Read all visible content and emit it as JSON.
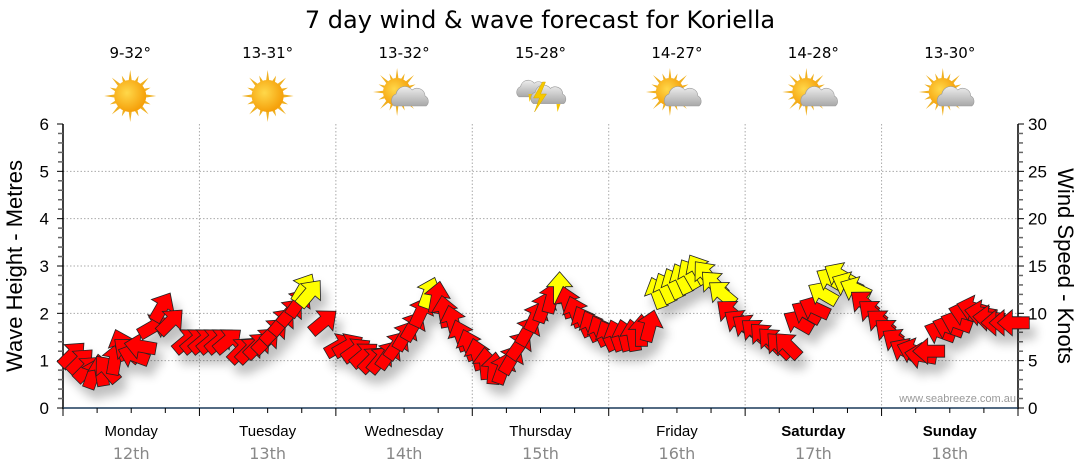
{
  "chart_data": {
    "type": "scatter",
    "title": "7 day wind & wave forecast for Koriella",
    "ylabel_left": "Wave Height - Metres",
    "ylabel_right": "Wind Speed - Knots",
    "ylim_left": [
      0,
      6
    ],
    "ylim_right": [
      0,
      30
    ],
    "yticks_left": [
      "0",
      "1",
      "2",
      "3",
      "4",
      "5",
      "6"
    ],
    "yticks_right": [
      "0",
      "5",
      "10",
      "15",
      "20",
      "25",
      "30"
    ],
    "grid": true,
    "watermark": "www.seabreeze.com.au",
    "colors": {
      "light_wind": "#ff0000",
      "strong_wind": "#ffff00",
      "axis": "#1a3a5a",
      "grid": "#aaaaaa"
    },
    "days": [
      {
        "name": "Monday",
        "date": "12th",
        "temp": "9-32°",
        "icon": "sunny-icon",
        "bold": false
      },
      {
        "name": "Tuesday",
        "date": "13th",
        "temp": "13-31°",
        "icon": "sunny-icon",
        "bold": false
      },
      {
        "name": "Wednesday",
        "date": "14th",
        "temp": "13-32°",
        "icon": "partly-cloudy-icon",
        "bold": false
      },
      {
        "name": "Thursday",
        "date": "15th",
        "temp": "15-28°",
        "icon": "thunderstorm-icon",
        "bold": false
      },
      {
        "name": "Friday",
        "date": "16th",
        "temp": "14-27°",
        "icon": "partly-cloudy-icon",
        "bold": false
      },
      {
        "name": "Saturday",
        "date": "17th",
        "temp": "14-28°",
        "icon": "partly-cloudy-icon",
        "bold": true
      },
      {
        "name": "Sunday",
        "date": "18th",
        "temp": "13-30°",
        "icon": "partly-cloudy-icon",
        "bold": true
      }
    ],
    "wind_x_unit": "days from Monday 00:00",
    "wind_series": [
      {
        "t": 0.06,
        "knots": 5.5,
        "dir": 45
      },
      {
        "t": 0.12,
        "knots": 4.8,
        "dir": 45
      },
      {
        "t": 0.17,
        "knots": 4.0,
        "dir": 45
      },
      {
        "t": 0.22,
        "knots": 3.5,
        "dir": 20
      },
      {
        "t": 0.28,
        "knots": 3.8,
        "dir": -10
      },
      {
        "t": 0.33,
        "knots": 4.0,
        "dir": -40
      },
      {
        "t": 0.38,
        "knots": 5.0,
        "dir": 10
      },
      {
        "t": 0.43,
        "knots": 6.5,
        "dir": -20
      },
      {
        "t": 0.48,
        "knots": 6.0,
        "dir": -50
      },
      {
        "t": 0.53,
        "knots": 5.5,
        "dir": -70
      },
      {
        "t": 0.58,
        "knots": 6.5,
        "dir": -80
      },
      {
        "t": 0.65,
        "knots": 8.5,
        "dir": 60
      },
      {
        "t": 0.72,
        "knots": 10.5,
        "dir": 30
      },
      {
        "t": 0.78,
        "knots": 9.0,
        "dir": 45
      },
      {
        "t": 0.9,
        "knots": 7.0,
        "dir": 50
      },
      {
        "t": 0.96,
        "knots": 7.0,
        "dir": 50
      },
      {
        "t": 1.02,
        "knots": 7.0,
        "dir": 50
      },
      {
        "t": 1.08,
        "knots": 7.0,
        "dir": 50
      },
      {
        "t": 1.14,
        "knots": 7.0,
        "dir": 50
      },
      {
        "t": 1.2,
        "knots": 7.0,
        "dir": 50
      },
      {
        "t": 1.3,
        "knots": 6.0,
        "dir": 45
      },
      {
        "t": 1.36,
        "knots": 6.0,
        "dir": 45
      },
      {
        "t": 1.42,
        "knots": 6.5,
        "dir": 45
      },
      {
        "t": 1.48,
        "knots": 7.0,
        "dir": 45
      },
      {
        "t": 1.54,
        "knots": 8.0,
        "dir": 45
      },
      {
        "t": 1.6,
        "knots": 9.0,
        "dir": 40
      },
      {
        "t": 1.66,
        "knots": 10.0,
        "dir": 40
      },
      {
        "t": 1.72,
        "knots": 11.0,
        "dir": 35
      },
      {
        "t": 1.76,
        "knots": 12.5,
        "dir": 30
      },
      {
        "t": 1.8,
        "knots": 12.0,
        "dir": 40
      },
      {
        "t": 1.9,
        "knots": 9.0,
        "dir": 50
      },
      {
        "t": 2.02,
        "knots": 6.5,
        "dir": 60
      },
      {
        "t": 2.08,
        "knots": 6.5,
        "dir": 60
      },
      {
        "t": 2.14,
        "knots": 6.0,
        "dir": 55
      },
      {
        "t": 2.2,
        "knots": 5.5,
        "dir": 50
      },
      {
        "t": 2.26,
        "knots": 5.0,
        "dir": 45
      },
      {
        "t": 2.32,
        "knots": 5.0,
        "dir": 40
      },
      {
        "t": 2.38,
        "knots": 5.5,
        "dir": 35
      },
      {
        "t": 2.44,
        "knots": 6.5,
        "dir": 35
      },
      {
        "t": 2.5,
        "knots": 7.5,
        "dir": 30
      },
      {
        "t": 2.56,
        "knots": 8.5,
        "dir": 30
      },
      {
        "t": 2.62,
        "knots": 10.0,
        "dir": 25
      },
      {
        "t": 2.68,
        "knots": 12.0,
        "dir": 20
      },
      {
        "t": 2.74,
        "knots": 11.5,
        "dir": 10
      },
      {
        "t": 2.8,
        "knots": 10.0,
        "dir": -10
      },
      {
        "t": 2.86,
        "knots": 9.0,
        "dir": -15
      },
      {
        "t": 2.92,
        "knots": 7.5,
        "dir": -20
      },
      {
        "t": 2.98,
        "knots": 6.5,
        "dir": -20
      },
      {
        "t": 3.04,
        "knots": 5.5,
        "dir": -15
      },
      {
        "t": 3.1,
        "knots": 4.5,
        "dir": -5
      },
      {
        "t": 3.16,
        "knots": 4.0,
        "dir": 5
      },
      {
        "t": 3.22,
        "knots": 4.0,
        "dir": 20
      },
      {
        "t": 3.28,
        "knots": 5.0,
        "dir": 30
      },
      {
        "t": 3.34,
        "knots": 6.5,
        "dir": 35
      },
      {
        "t": 3.4,
        "knots": 8.0,
        "dir": 30
      },
      {
        "t": 3.46,
        "knots": 9.5,
        "dir": 25
      },
      {
        "t": 3.52,
        "knots": 10.5,
        "dir": 20
      },
      {
        "t": 3.58,
        "knots": 11.5,
        "dir": 15
      },
      {
        "t": 3.64,
        "knots": 12.5,
        "dir": 0
      },
      {
        "t": 3.7,
        "knots": 11.0,
        "dir": -15
      },
      {
        "t": 3.76,
        "knots": 10.0,
        "dir": -20
      },
      {
        "t": 3.82,
        "knots": 9.0,
        "dir": -25
      },
      {
        "t": 3.88,
        "knots": 8.5,
        "dir": -25
      },
      {
        "t": 3.94,
        "knots": 8.0,
        "dir": -25
      },
      {
        "t": 4.0,
        "knots": 7.5,
        "dir": -25
      },
      {
        "t": 4.06,
        "knots": 7.5,
        "dir": -20
      },
      {
        "t": 4.12,
        "knots": 7.5,
        "dir": -15
      },
      {
        "t": 4.18,
        "knots": 7.5,
        "dir": -10
      },
      {
        "t": 4.24,
        "knots": 8.0,
        "dir": 0
      },
      {
        "t": 4.3,
        "knots": 8.5,
        "dir": 15
      },
      {
        "t": 4.36,
        "knots": 12.0,
        "dir": -20
      },
      {
        "t": 4.42,
        "knots": 12.5,
        "dir": -25
      },
      {
        "t": 4.48,
        "knots": 13.0,
        "dir": -25
      },
      {
        "t": 4.54,
        "knots": 13.5,
        "dir": -25
      },
      {
        "t": 4.6,
        "knots": 14.0,
        "dir": -30
      },
      {
        "t": 4.66,
        "knots": 14.5,
        "dir": -30
      },
      {
        "t": 4.72,
        "knots": 14.0,
        "dir": -40
      },
      {
        "t": 4.78,
        "knots": 13.0,
        "dir": -45
      },
      {
        "t": 4.84,
        "knots": 12.0,
        "dir": -50
      },
      {
        "t": 4.9,
        "knots": 10.0,
        "dir": -50
      },
      {
        "t": 4.96,
        "knots": 9.0,
        "dir": -55
      },
      {
        "t": 5.02,
        "knots": 8.5,
        "dir": -55
      },
      {
        "t": 5.08,
        "knots": 8.0,
        "dir": -50
      },
      {
        "t": 5.14,
        "knots": 7.5,
        "dir": -45
      },
      {
        "t": 5.2,
        "knots": 7.0,
        "dir": -45
      },
      {
        "t": 5.26,
        "knots": 6.5,
        "dir": -45
      },
      {
        "t": 5.32,
        "knots": 6.5,
        "dir": -45
      },
      {
        "t": 5.4,
        "knots": 9.0,
        "dir": -60
      },
      {
        "t": 5.46,
        "knots": 10.0,
        "dir": -60
      },
      {
        "t": 5.52,
        "knots": 10.5,
        "dir": -65
      },
      {
        "t": 5.58,
        "knots": 12.0,
        "dir": -60
      },
      {
        "t": 5.64,
        "knots": 13.5,
        "dir": -60
      },
      {
        "t": 5.7,
        "knots": 14.0,
        "dir": -60
      },
      {
        "t": 5.76,
        "knots": 13.0,
        "dir": -65
      },
      {
        "t": 5.82,
        "knots": 12.5,
        "dir": -65
      },
      {
        "t": 5.88,
        "knots": 11.0,
        "dir": -50
      },
      {
        "t": 5.94,
        "knots": 10.0,
        "dir": -50
      },
      {
        "t": 6.0,
        "knots": 9.0,
        "dir": -50
      },
      {
        "t": 6.06,
        "knots": 8.0,
        "dir": -50
      },
      {
        "t": 6.12,
        "knots": 7.0,
        "dir": -55
      },
      {
        "t": 6.18,
        "knots": 6.0,
        "dir": -60
      },
      {
        "t": 6.24,
        "knots": 6.0,
        "dir": -70
      },
      {
        "t": 6.3,
        "knots": 5.5,
        "dir": -80
      },
      {
        "t": 6.36,
        "knots": 6.0,
        "dir": -90
      },
      {
        "t": 6.44,
        "knots": 8.0,
        "dir": -70
      },
      {
        "t": 6.5,
        "knots": 8.5,
        "dir": -70
      },
      {
        "t": 6.56,
        "knots": 9.0,
        "dir": -70
      },
      {
        "t": 6.62,
        "knots": 10.0,
        "dir": -75
      },
      {
        "t": 6.68,
        "knots": 10.5,
        "dir": -75
      },
      {
        "t": 6.74,
        "knots": 10.0,
        "dir": -80
      },
      {
        "t": 6.8,
        "knots": 9.5,
        "dir": -85
      },
      {
        "t": 6.86,
        "knots": 9.0,
        "dir": -90
      },
      {
        "t": 6.92,
        "knots": 9.0,
        "dir": -90
      },
      {
        "t": 6.98,
        "knots": 9.0,
        "dir": -90
      }
    ],
    "strong_wind_threshold_knots": 12
  }
}
